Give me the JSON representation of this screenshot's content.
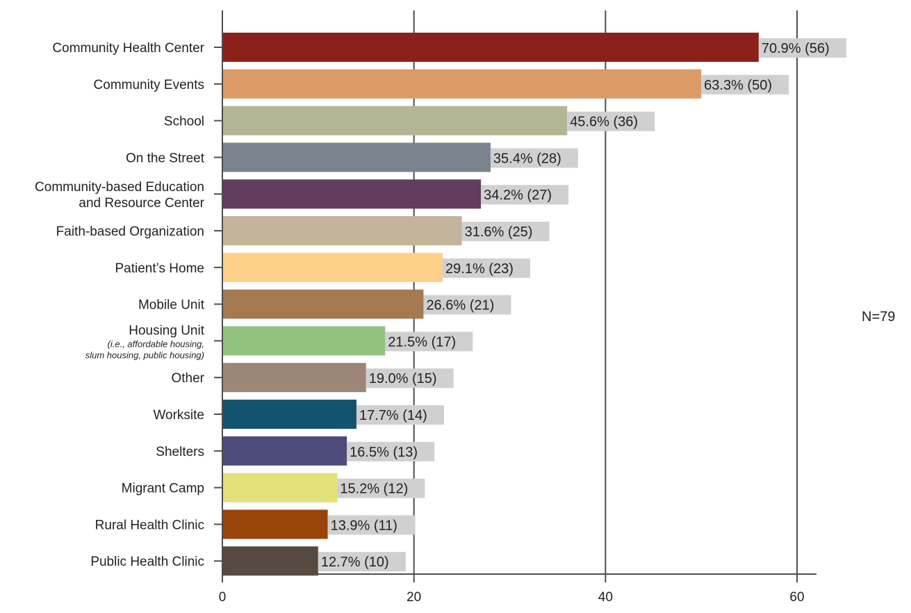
{
  "chart_data": {
    "type": "bar",
    "orientation": "horizontal",
    "title": "",
    "xlabel": "",
    "ylabel": "",
    "xlim": [
      0,
      60
    ],
    "x_ticks": [
      0,
      20,
      40,
      60
    ],
    "grid": true,
    "note": "N=79",
    "categories": [
      {
        "lines": [
          "Community Health Center"
        ],
        "sub": []
      },
      {
        "lines": [
          "Community Events"
        ],
        "sub": []
      },
      {
        "lines": [
          "School"
        ],
        "sub": []
      },
      {
        "lines": [
          "On the Street"
        ],
        "sub": []
      },
      {
        "lines": [
          "Community-based Education",
          "and Resource Center"
        ],
        "sub": []
      },
      {
        "lines": [
          "Faith-based Organization"
        ],
        "sub": []
      },
      {
        "lines": [
          "Patient’s Home"
        ],
        "sub": []
      },
      {
        "lines": [
          "Mobile Unit"
        ],
        "sub": []
      },
      {
        "lines": [
          "Housing Unit"
        ],
        "sub": [
          "(i.e., affordable housing,",
          "slum housing, public housing)"
        ]
      },
      {
        "lines": [
          "Other"
        ],
        "sub": []
      },
      {
        "lines": [
          "Worksite"
        ],
        "sub": []
      },
      {
        "lines": [
          "Shelters"
        ],
        "sub": []
      },
      {
        "lines": [
          "Migrant Camp"
        ],
        "sub": []
      },
      {
        "lines": [
          "Rural Health Clinic"
        ],
        "sub": []
      },
      {
        "lines": [
          "Public Health Clinic"
        ],
        "sub": []
      }
    ],
    "values": [
      56,
      50,
      36,
      28,
      27,
      25,
      23,
      21,
      17,
      15,
      14,
      13,
      12,
      11,
      10
    ],
    "data_labels": [
      "70.9% (56)",
      "63.3% (50)",
      "45.6% (36)",
      "35.4% (28)",
      "34.2% (27)",
      "31.6% (25)",
      "29.1% (23)",
      "26.6% (21)",
      "21.5% (17)",
      "19.0% (15)",
      "17.7% (14)",
      "16.5% (13)",
      "15.2% (12)",
      "13.9% (11)",
      "12.7% (10)"
    ],
    "colors": [
      "#8b2119",
      "#dc9a66",
      "#b4b594",
      "#7a838b",
      "#623d5e",
      "#c4b49b",
      "#fdd088",
      "#a57a51",
      "#92c17e",
      "#9c8677",
      "#135370",
      "#4c4b79",
      "#e4e07a",
      "#994409",
      "#574a40"
    ],
    "label_background": "#d0d0d0",
    "gridline_color": "#4d4d4d"
  }
}
